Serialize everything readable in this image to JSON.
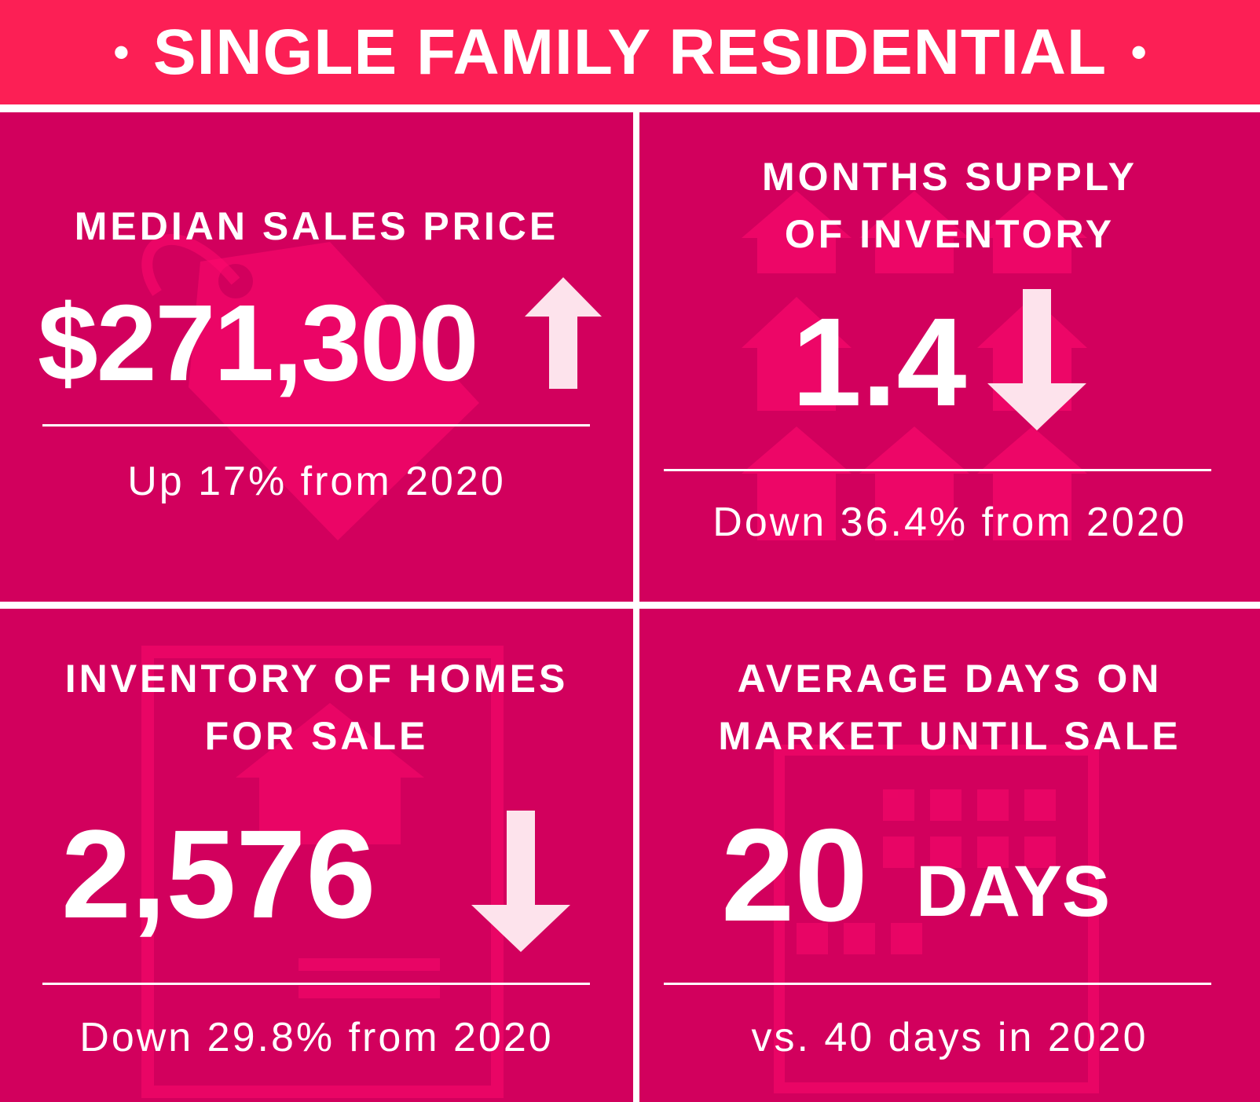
{
  "banner": {
    "title": "SINGLE FAMILY RESIDENTIAL",
    "dot": "•",
    "color": "#fc1f55"
  },
  "panel_color": "#d2005d",
  "accent_art_color": "#ff0a6e",
  "stats": [
    {
      "label_lines": [
        "MEDIAN SALES PRICE"
      ],
      "value": "$271,300",
      "trend": "up",
      "trend_icon": "arrow-up-icon",
      "subtext": "Up 17% from 2020",
      "background_icon": "price-tag-icon"
    },
    {
      "label_lines": [
        "MONTHS SUPPLY",
        "OF INVENTORY"
      ],
      "value": "1.4",
      "trend": "down",
      "trend_icon": "arrow-down-icon",
      "subtext": "Down 36.4% from 2020",
      "background_icon": "houses-icon"
    },
    {
      "label_lines": [
        "INVENTORY OF HOMES",
        "FOR SALE"
      ],
      "value": "2,576",
      "trend": "down",
      "trend_icon": "arrow-down-icon",
      "subtext": "Down 29.8% from 2020",
      "background_icon": "listing-sheet-icon"
    },
    {
      "label_lines": [
        "AVERAGE DAYS ON",
        "MARKET UNTIL SALE"
      ],
      "value": "20",
      "value_unit": "DAYS",
      "subtext": "vs. 40 days in 2020",
      "background_icon": "calendar-icon"
    }
  ]
}
